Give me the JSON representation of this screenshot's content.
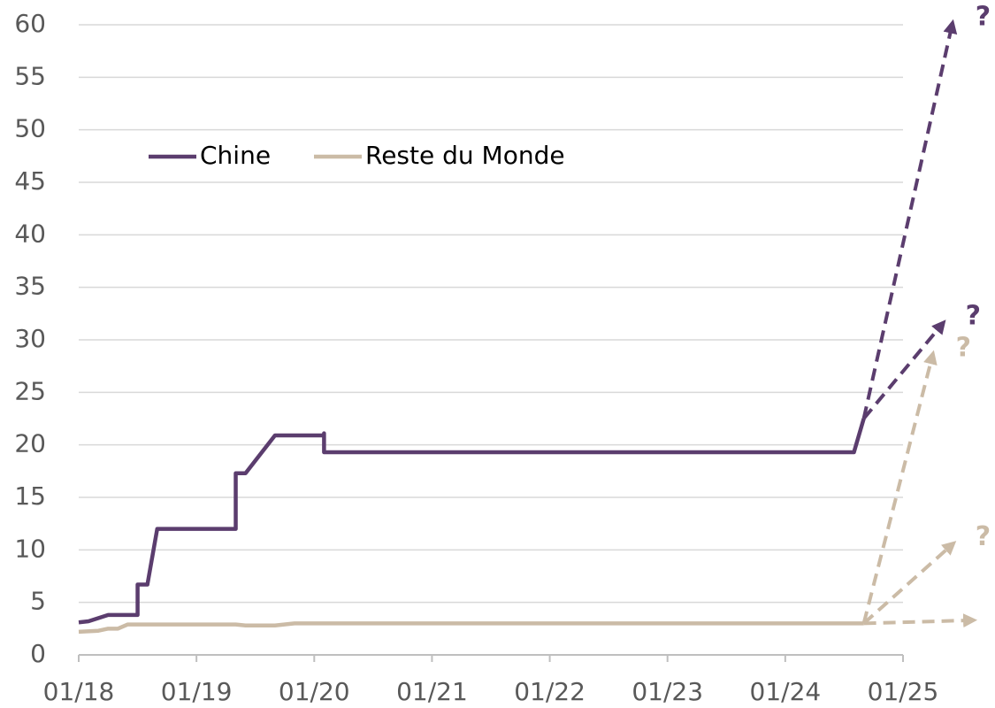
{
  "chart_data": {
    "type": "line",
    "xticks": [
      "01/18",
      "01/19",
      "01/20",
      "01/21",
      "01/22",
      "01/23",
      "01/24",
      "01/25"
    ],
    "xlim": [
      "01/18",
      "01/25"
    ],
    "ylim": [
      0,
      60
    ],
    "yticks": [
      0,
      5,
      10,
      15,
      20,
      25,
      30,
      35,
      40,
      45,
      50,
      55,
      60
    ],
    "grid": true,
    "legend": "upper left",
    "series": [
      {
        "name": "Chine",
        "color": "#5b3d6e",
        "x": [
          "01/18",
          "02/18",
          "04/18",
          "07/18",
          "07/18",
          "08/18",
          "09/18",
          "05/19",
          "05/19",
          "06/19",
          "09/19",
          "02/20",
          "02/20",
          "02/20",
          "08/24",
          "09/24"
        ],
        "values": [
          3.1,
          3.2,
          3.8,
          3.8,
          6.7,
          6.7,
          12,
          12,
          17.3,
          17.3,
          20.9,
          20.9,
          21.1,
          19.3,
          19.3,
          22.5
        ]
      },
      {
        "name": "Reste du Monde",
        "color": "#cbbba6",
        "x": [
          "01/18",
          "03/18",
          "04/18",
          "05/18",
          "06/18",
          "05/19",
          "06/19",
          "09/19",
          "11/19",
          "09/24"
        ],
        "values": [
          2.2,
          2.3,
          2.5,
          2.5,
          2.9,
          2.9,
          2.8,
          2.8,
          3.0,
          3.0
        ]
      }
    ],
    "projections": [
      {
        "series": 0,
        "x": [
          "09/24",
          "06/25"
        ],
        "values": [
          22.5,
          60
        ],
        "label": "?"
      },
      {
        "series": 0,
        "x": [
          "09/24",
          "05/25"
        ],
        "values": [
          22.5,
          31.5
        ],
        "label": "?"
      },
      {
        "series": 1,
        "x": [
          "09/24",
          "04/25"
        ],
        "values": [
          3.0,
          28.5
        ],
        "label": "?"
      },
      {
        "series": 1,
        "x": [
          "09/24",
          "06/25"
        ],
        "values": [
          3.0,
          10.5
        ],
        "label": "?"
      },
      {
        "series": 1,
        "x": [
          "09/24",
          "08/25"
        ],
        "values": [
          3.0,
          3.3
        ]
      }
    ]
  }
}
